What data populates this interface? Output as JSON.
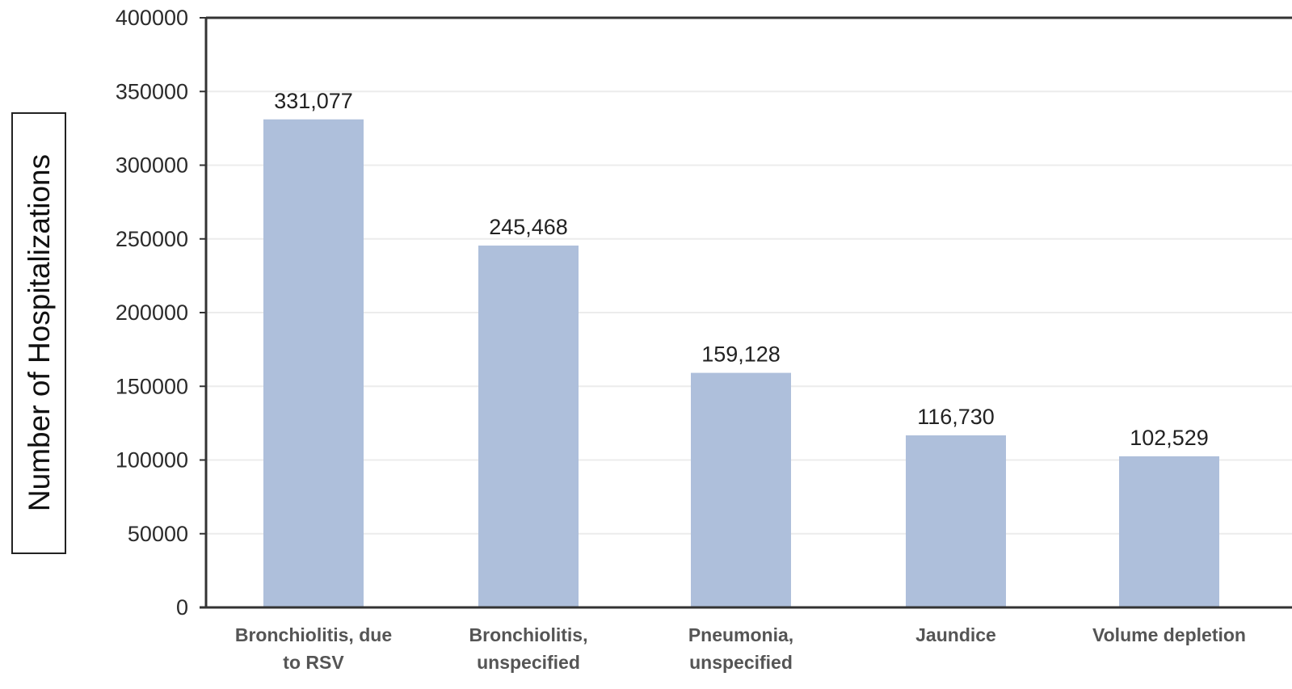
{
  "chart_data": {
    "type": "bar",
    "title": "",
    "xlabel": "",
    "ylabel": "Number of Hospitalizations",
    "categories": [
      [
        "Bronchiolitis, due",
        "to RSV"
      ],
      [
        "Bronchiolitis,",
        "unspecified"
      ],
      [
        "Pneumonia,",
        "unspecified"
      ],
      [
        "Jaundice"
      ],
      [
        "Volume depletion"
      ]
    ],
    "values": [
      331077,
      245468,
      159128,
      116730,
      102529
    ],
    "value_labels": [
      "331,077",
      "245,468",
      "159,128",
      "116,730",
      "102,529"
    ],
    "ylim": [
      0,
      400000
    ],
    "yticks": [
      0,
      50000,
      100000,
      150000,
      200000,
      250000,
      300000,
      350000,
      400000
    ],
    "ytick_labels": [
      "0",
      "50000",
      "100000",
      "150000",
      "200000",
      "250000",
      "300000",
      "350000",
      "400000"
    ],
    "grid": true,
    "legend": "none",
    "colors": {
      "bar": "#aebfdb",
      "axis": "#333333",
      "grid": "#ececec",
      "frame": "#333333"
    }
  }
}
